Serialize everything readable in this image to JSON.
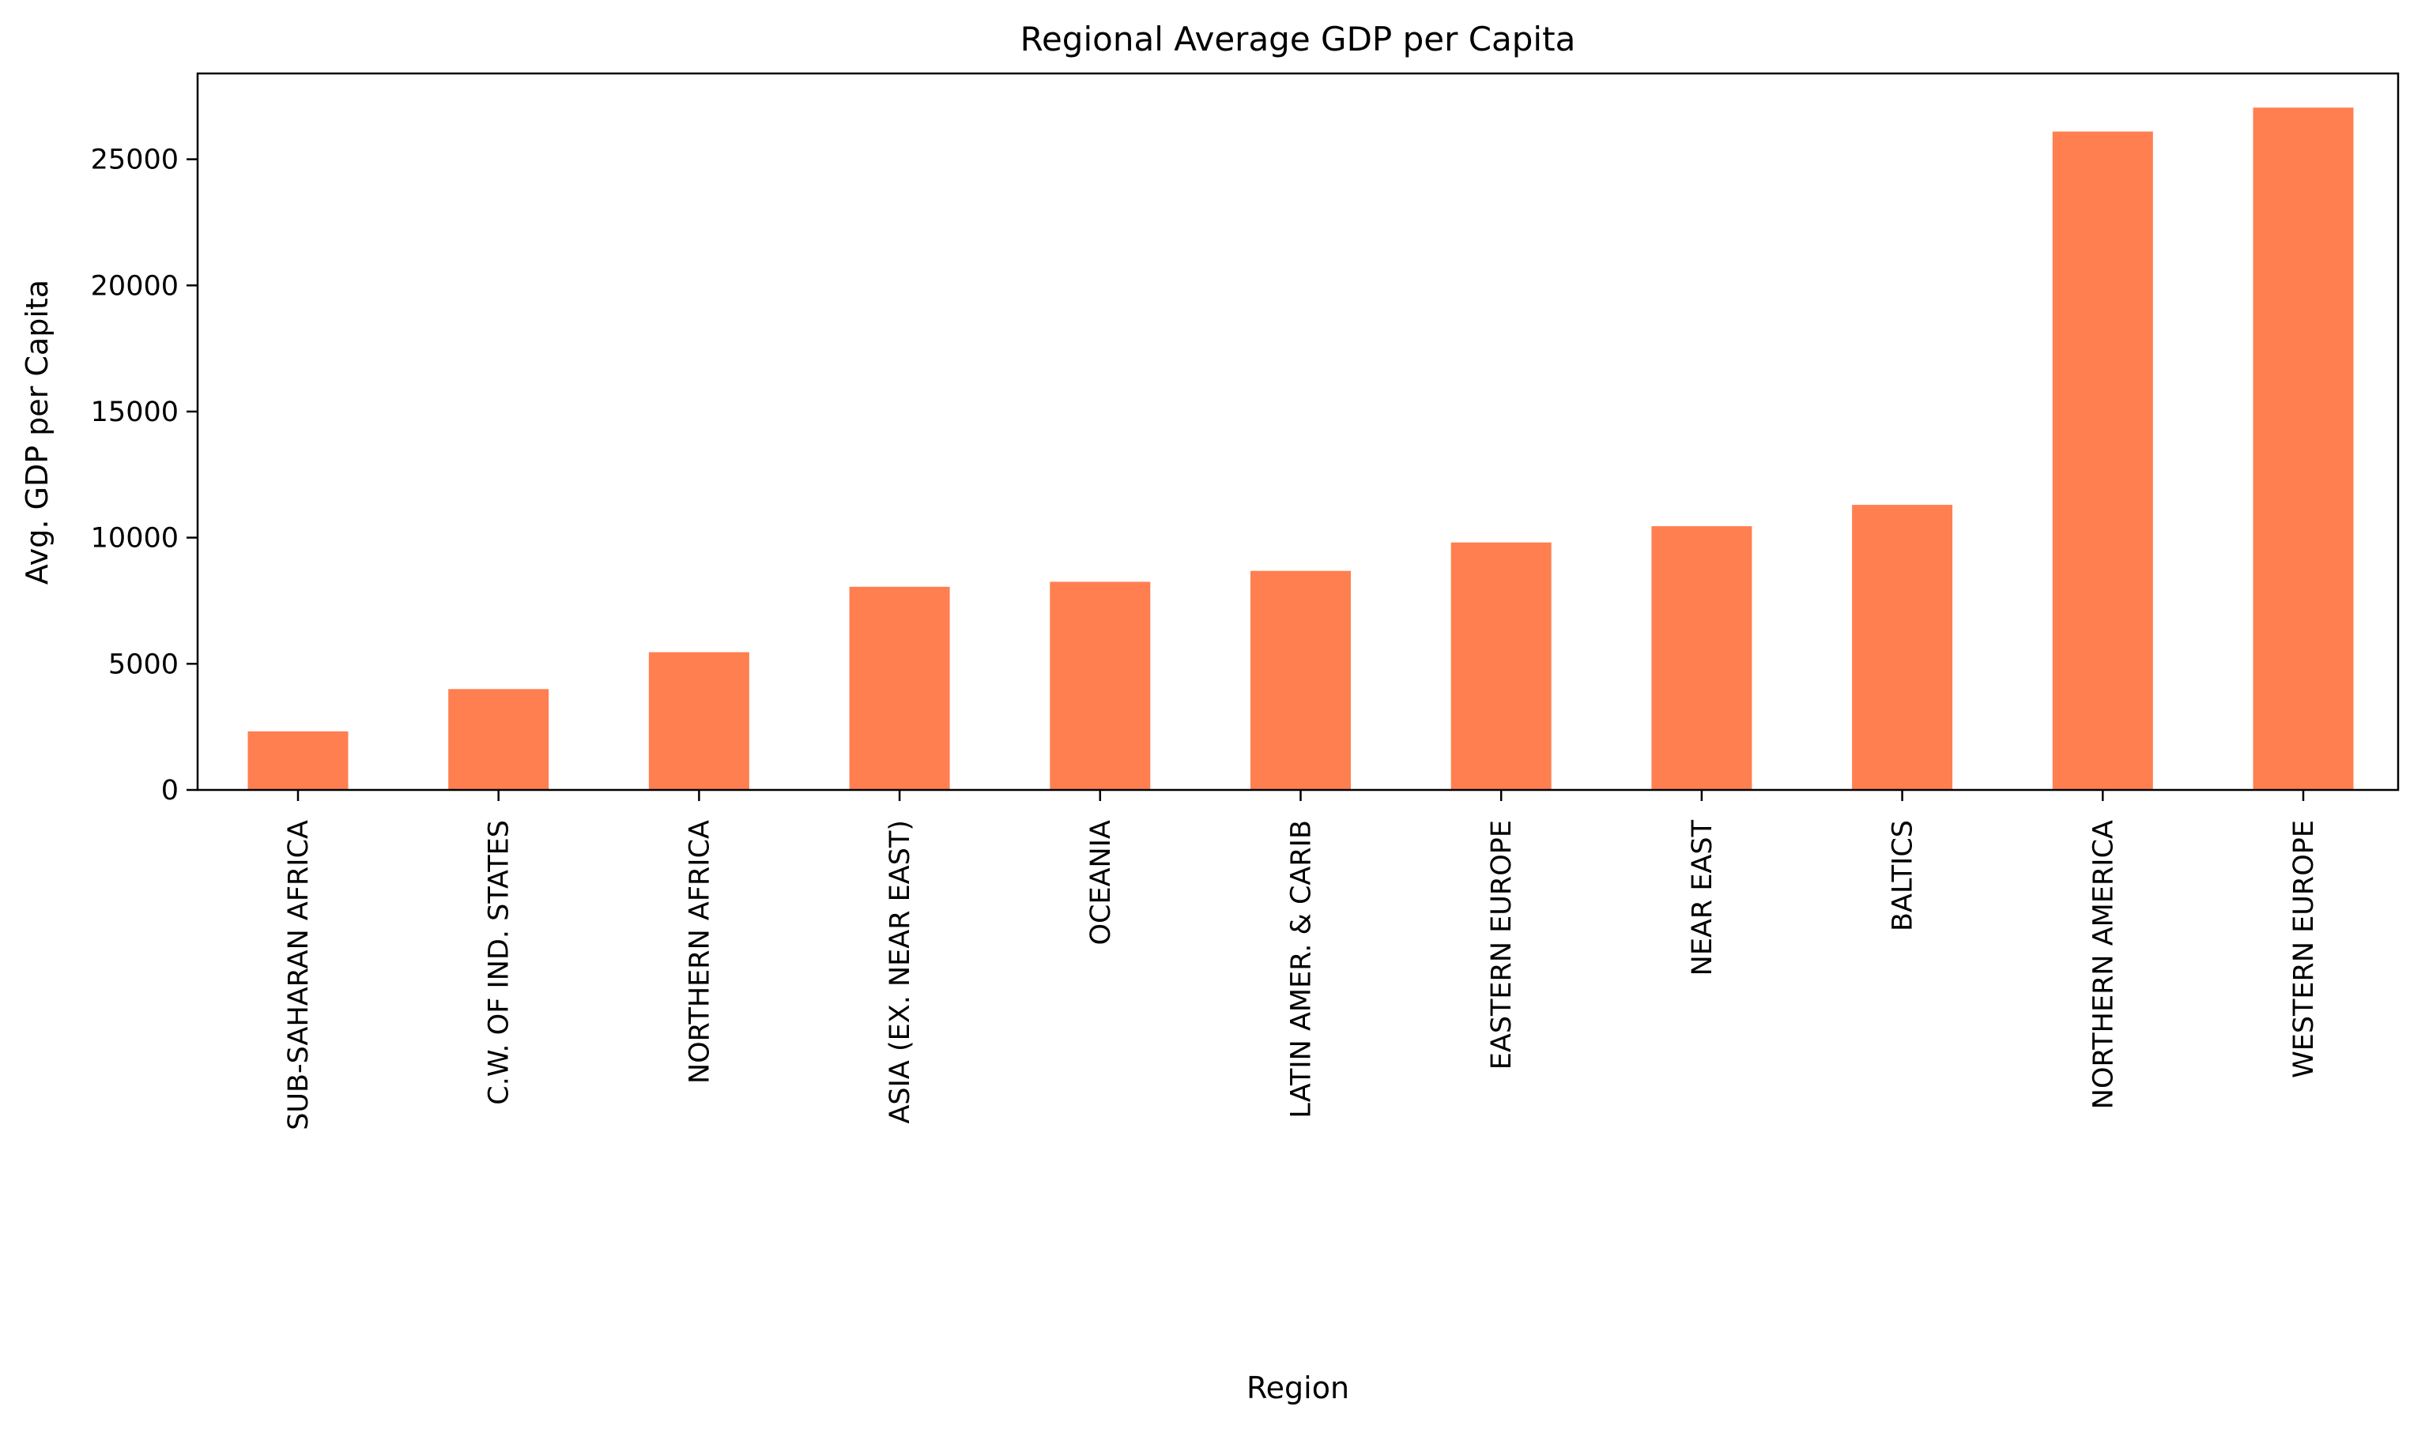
{
  "chart_data": {
    "type": "bar",
    "title": "Regional Average GDP per Capita",
    "xlabel": "Region",
    "ylabel": "Avg. GDP per Capita",
    "categories": [
      "SUB-SAHARAN AFRICA",
      "C.W. OF IND. STATES",
      "NORTHERN AFRICA",
      "ASIA (EX. NEAR EAST)",
      "OCEANIA",
      "LATIN AMER. & CARIB",
      "EASTERN EUROPE",
      "NEAR EAST",
      "BALTICS",
      "NORTHERN AMERICA",
      "WESTERN EUROPE"
    ],
    "values": [
      2323,
      4000,
      5460,
      8053,
      8250,
      8682,
      9809,
      10456,
      11300,
      26100,
      27046
    ],
    "ylim": [
      0,
      28400
    ],
    "yticks": [
      0,
      5000,
      10000,
      15000,
      20000,
      25000
    ],
    "bar_color": "#ff7f50",
    "grid": false,
    "legend": false
  }
}
